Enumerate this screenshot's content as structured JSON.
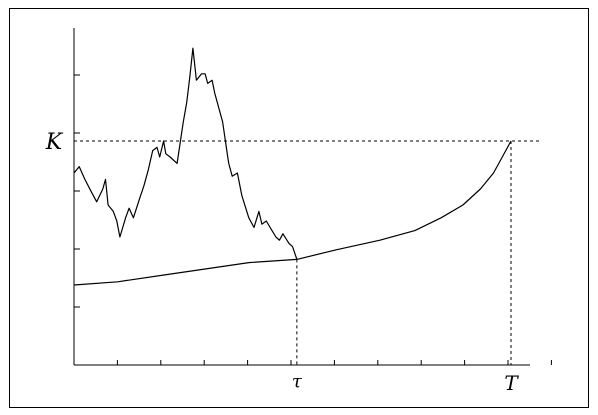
{
  "chart_data": {
    "type": "line",
    "title": "",
    "xlabel": "",
    "ylabel": "",
    "xlim": [
      0,
      1
    ],
    "ylim": [
      0,
      1
    ],
    "x_tick_count": 11,
    "y_tick_count": 6,
    "grid": false,
    "level": {
      "label": "K",
      "y": 0.7
    },
    "markers": [
      {
        "label": "τ",
        "x": 0.51
      },
      {
        "label": "T",
        "x": 1.0
      }
    ],
    "series": [
      {
        "kind": "boundary",
        "style": "solid",
        "points": [
          [
            0.0,
            0.25
          ],
          [
            0.1,
            0.26
          ],
          [
            0.2,
            0.28
          ],
          [
            0.3,
            0.3
          ],
          [
            0.4,
            0.32
          ],
          [
            0.51,
            0.33
          ],
          [
            0.6,
            0.36
          ],
          [
            0.7,
            0.39
          ],
          [
            0.78,
            0.42
          ],
          [
            0.84,
            0.46
          ],
          [
            0.89,
            0.5
          ],
          [
            0.93,
            0.55
          ],
          [
            0.96,
            0.6
          ],
          [
            0.98,
            0.65
          ],
          [
            1.0,
            0.7
          ]
        ]
      },
      {
        "kind": "path",
        "style": "solid",
        "points": [
          [
            0.0,
            0.6
          ],
          [
            0.012,
            0.62
          ],
          [
            0.025,
            0.58
          ],
          [
            0.04,
            0.54
          ],
          [
            0.052,
            0.51
          ],
          [
            0.066,
            0.55
          ],
          [
            0.072,
            0.58
          ],
          [
            0.078,
            0.5
          ],
          [
            0.09,
            0.48
          ],
          [
            0.098,
            0.45
          ],
          [
            0.105,
            0.4
          ],
          [
            0.118,
            0.46
          ],
          [
            0.126,
            0.49
          ],
          [
            0.136,
            0.46
          ],
          [
            0.15,
            0.52
          ],
          [
            0.16,
            0.56
          ],
          [
            0.17,
            0.61
          ],
          [
            0.18,
            0.67
          ],
          [
            0.19,
            0.68
          ],
          [
            0.196,
            0.65
          ],
          [
            0.205,
            0.7
          ],
          [
            0.21,
            0.66
          ],
          [
            0.22,
            0.65
          ],
          [
            0.236,
            0.63
          ],
          [
            0.25,
            0.76
          ],
          [
            0.258,
            0.82
          ],
          [
            0.265,
            0.9
          ],
          [
            0.272,
            0.99
          ],
          [
            0.28,
            0.89
          ],
          [
            0.292,
            0.91
          ],
          [
            0.3,
            0.91
          ],
          [
            0.306,
            0.88
          ],
          [
            0.316,
            0.89
          ],
          [
            0.322,
            0.85
          ],
          [
            0.34,
            0.76
          ],
          [
            0.354,
            0.63
          ],
          [
            0.362,
            0.59
          ],
          [
            0.374,
            0.6
          ],
          [
            0.384,
            0.53
          ],
          [
            0.4,
            0.46
          ],
          [
            0.412,
            0.43
          ],
          [
            0.423,
            0.48
          ],
          [
            0.43,
            0.44
          ],
          [
            0.44,
            0.45
          ],
          [
            0.453,
            0.42
          ],
          [
            0.462,
            0.4
          ],
          [
            0.47,
            0.39
          ],
          [
            0.478,
            0.41
          ],
          [
            0.492,
            0.38
          ],
          [
            0.5,
            0.37
          ],
          [
            0.51,
            0.33
          ]
        ]
      }
    ]
  }
}
